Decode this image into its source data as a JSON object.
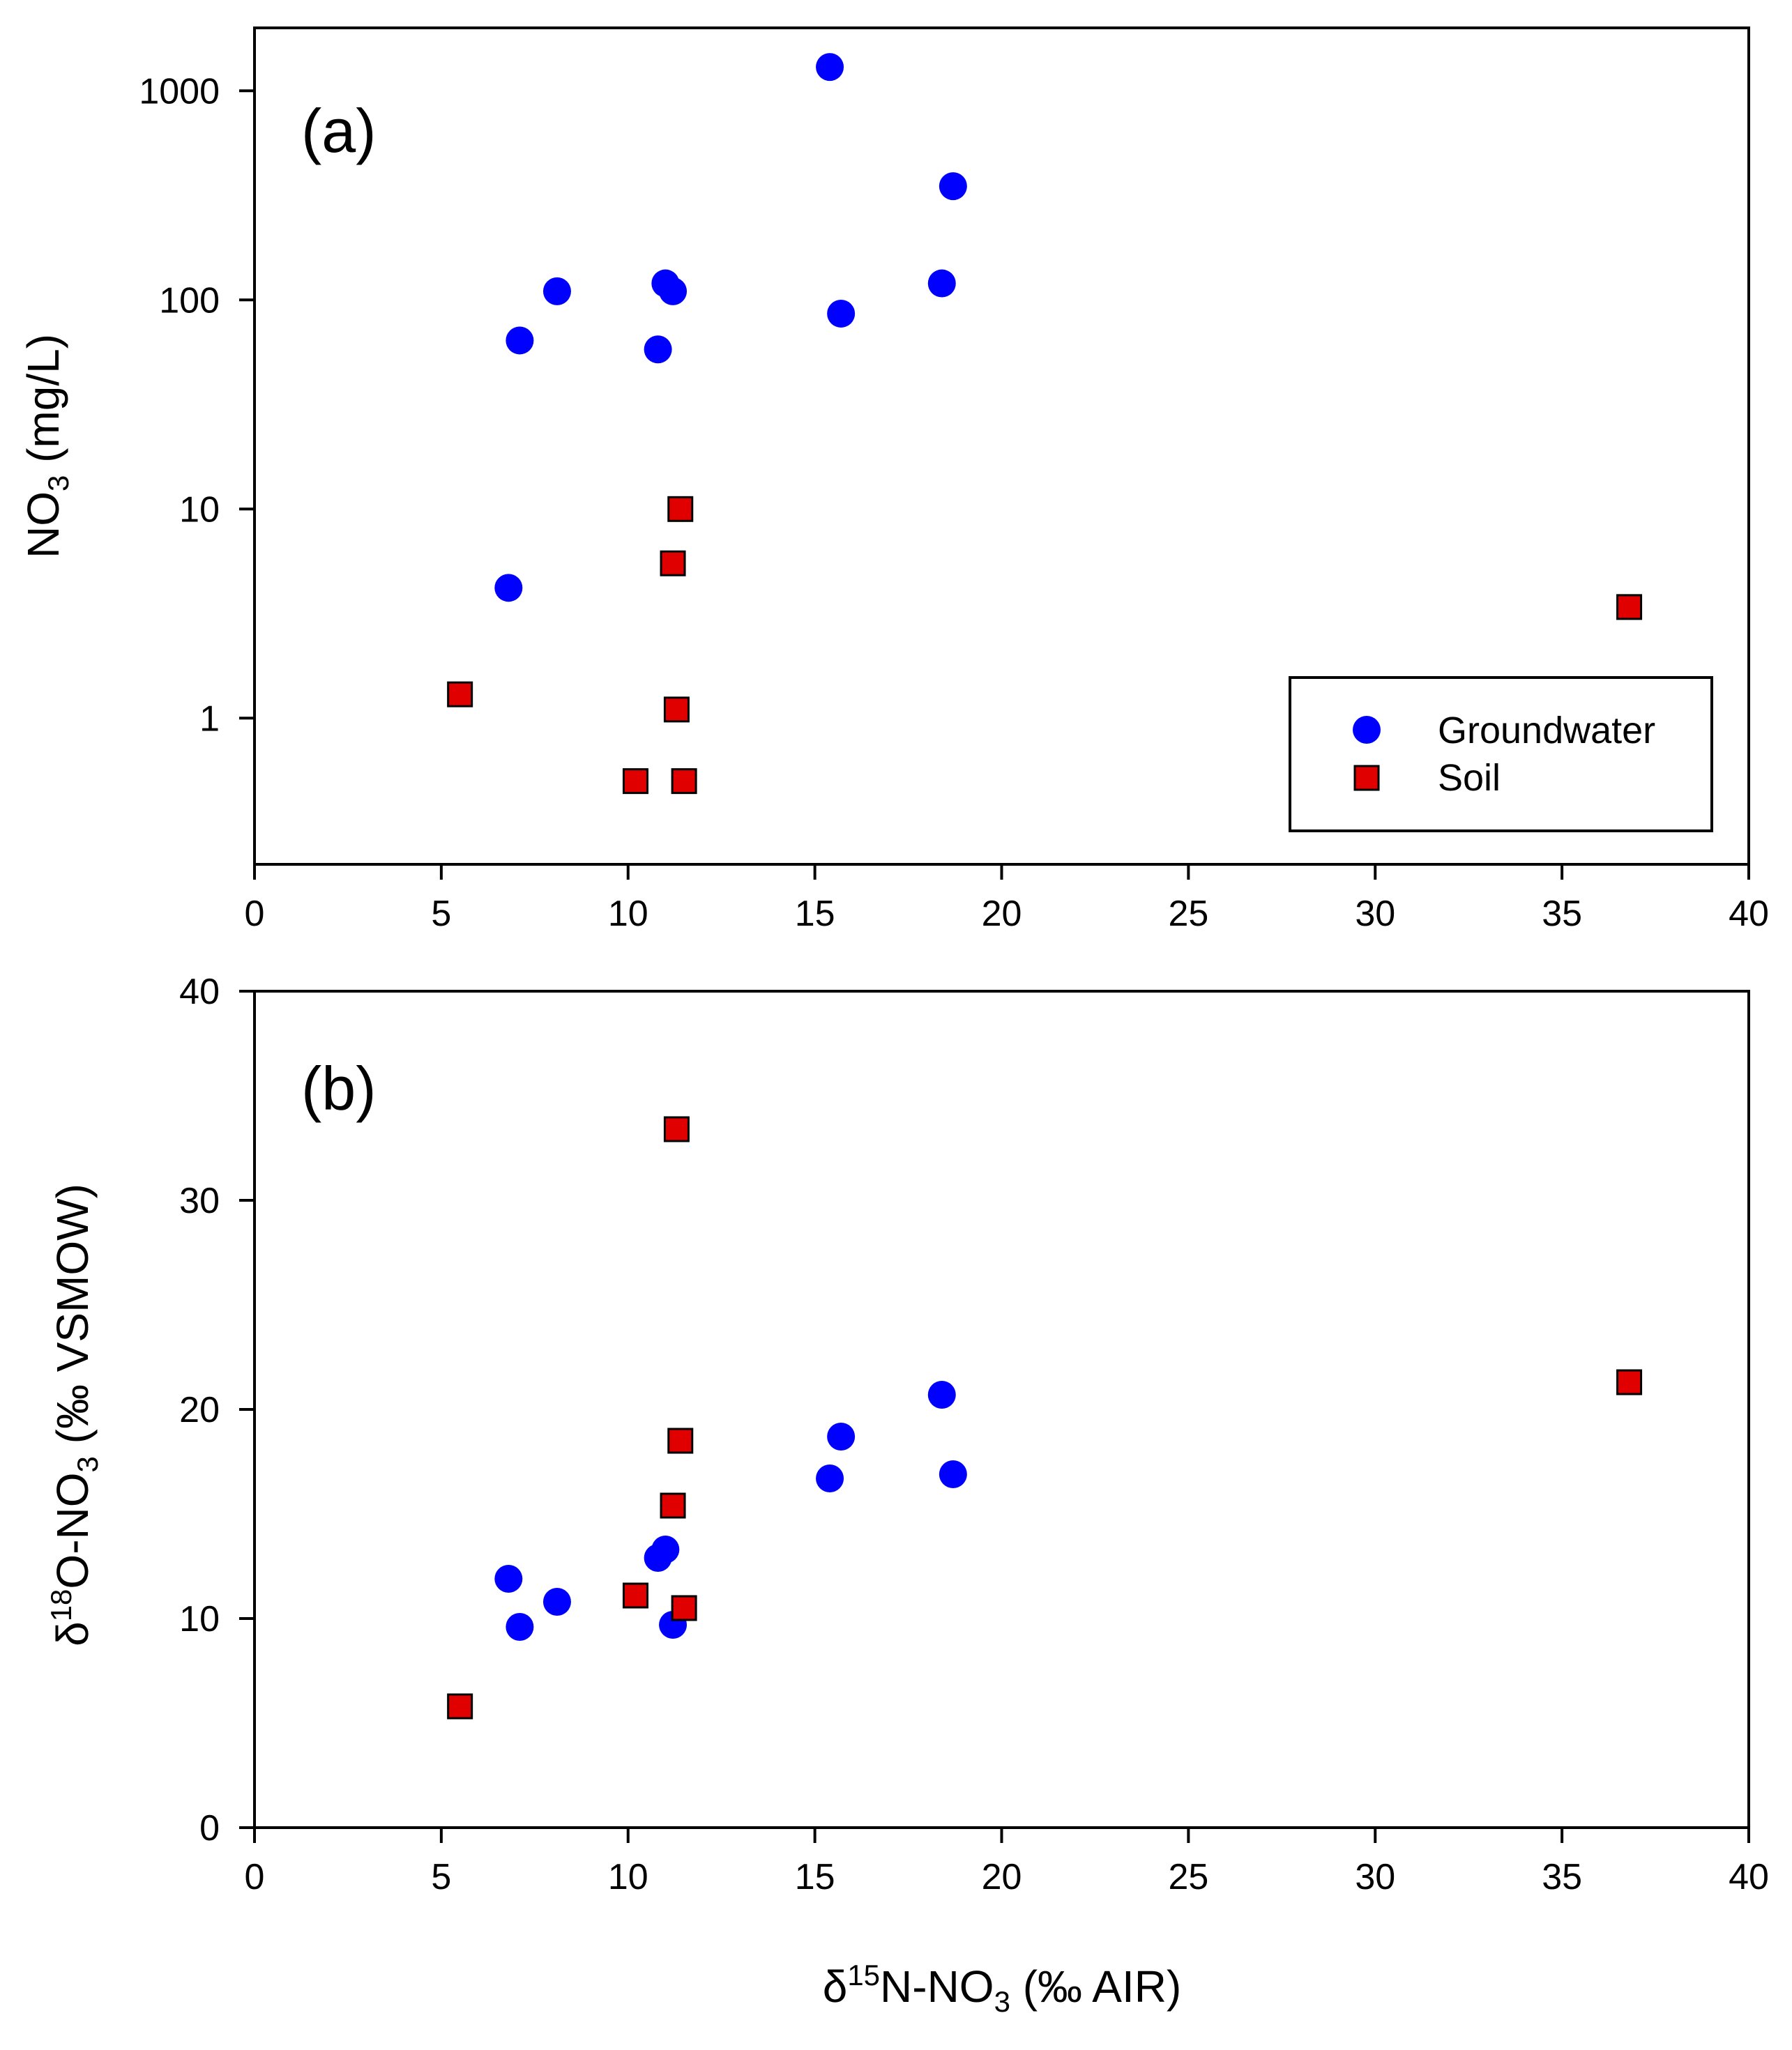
{
  "chart_data": [
    {
      "type": "scatter",
      "panel_label": "(a)",
      "title": "",
      "xlabel": "",
      "ylabel": {
        "main": "NO",
        "sub": "3",
        "suffix": " (mg/L)"
      },
      "x_scale": "linear",
      "y_scale": "log",
      "xlim": [
        0,
        40
      ],
      "ylim": [
        0.2,
        2000
      ],
      "x_ticks": [
        0,
        5,
        10,
        15,
        20,
        25,
        30,
        35,
        40
      ],
      "x_tick_labels": [
        "0",
        "5",
        "10",
        "15",
        "20",
        "25",
        "30",
        "35",
        "40"
      ],
      "y_ticks": [
        1,
        10,
        100,
        1000
      ],
      "y_tick_labels": [
        "1",
        "10",
        "100",
        "1000"
      ],
      "grid": false,
      "legend_position": "bottom-right",
      "series": [
        {
          "name": "Groundwater",
          "marker": "circle",
          "color": "#0000ff",
          "points": [
            {
              "x": 6.8,
              "y": 4.2
            },
            {
              "x": 7.1,
              "y": 64
            },
            {
              "x": 8.1,
              "y": 110
            },
            {
              "x": 10.8,
              "y": 58
            },
            {
              "x": 11.0,
              "y": 120
            },
            {
              "x": 11.2,
              "y": 110
            },
            {
              "x": 15.4,
              "y": 1300
            },
            {
              "x": 15.7,
              "y": 86
            },
            {
              "x": 18.4,
              "y": 120
            },
            {
              "x": 18.7,
              "y": 350
            }
          ]
        },
        {
          "name": "Soil",
          "marker": "square",
          "color": "#e00000",
          "points": [
            {
              "x": 5.5,
              "y": 1.3
            },
            {
              "x": 10.2,
              "y": 0.5
            },
            {
              "x": 11.2,
              "y": 5.5
            },
            {
              "x": 11.3,
              "y": 1.1
            },
            {
              "x": 11.4,
              "y": 10
            },
            {
              "x": 11.5,
              "y": 0.5
            },
            {
              "x": 36.8,
              "y": 3.4
            }
          ]
        }
      ]
    },
    {
      "type": "scatter",
      "panel_label": "(b)",
      "title": "",
      "xlabel": {
        "delta": "δ",
        "sup": "15",
        "main": "N-NO",
        "sub": "3",
        "suffix": " (‰ AIR)"
      },
      "ylabel": {
        "delta": "δ",
        "sup": "18",
        "main": "O-NO",
        "sub": "3",
        "suffix": " (‰ VSMOW)"
      },
      "x_scale": "linear",
      "y_scale": "linear",
      "xlim": [
        0,
        40
      ],
      "ylim": [
        0,
        40
      ],
      "x_ticks": [
        0,
        5,
        10,
        15,
        20,
        25,
        30,
        35,
        40
      ],
      "x_tick_labels": [
        "0",
        "5",
        "10",
        "15",
        "20",
        "25",
        "30",
        "35",
        "40"
      ],
      "y_ticks": [
        0,
        10,
        20,
        30,
        40
      ],
      "y_tick_labels": [
        "0",
        "10",
        "20",
        "30",
        "40"
      ],
      "grid": false,
      "series": [
        {
          "name": "Groundwater",
          "marker": "circle",
          "color": "#0000ff",
          "points": [
            {
              "x": 6.8,
              "y": 11.9
            },
            {
              "x": 7.1,
              "y": 9.6
            },
            {
              "x": 8.1,
              "y": 10.8
            },
            {
              "x": 10.8,
              "y": 12.9
            },
            {
              "x": 11.0,
              "y": 13.3
            },
            {
              "x": 11.2,
              "y": 9.7
            },
            {
              "x": 15.4,
              "y": 16.7
            },
            {
              "x": 15.7,
              "y": 18.7
            },
            {
              "x": 18.4,
              "y": 20.7
            },
            {
              "x": 18.7,
              "y": 16.9
            }
          ]
        },
        {
          "name": "Soil",
          "marker": "square",
          "color": "#e00000",
          "points": [
            {
              "x": 5.5,
              "y": 5.8
            },
            {
              "x": 10.2,
              "y": 11.1
            },
            {
              "x": 11.2,
              "y": 15.4
            },
            {
              "x": 11.3,
              "y": 33.4
            },
            {
              "x": 11.4,
              "y": 18.5
            },
            {
              "x": 11.5,
              "y": 10.5
            },
            {
              "x": 36.8,
              "y": 21.3
            }
          ]
        }
      ]
    }
  ]
}
